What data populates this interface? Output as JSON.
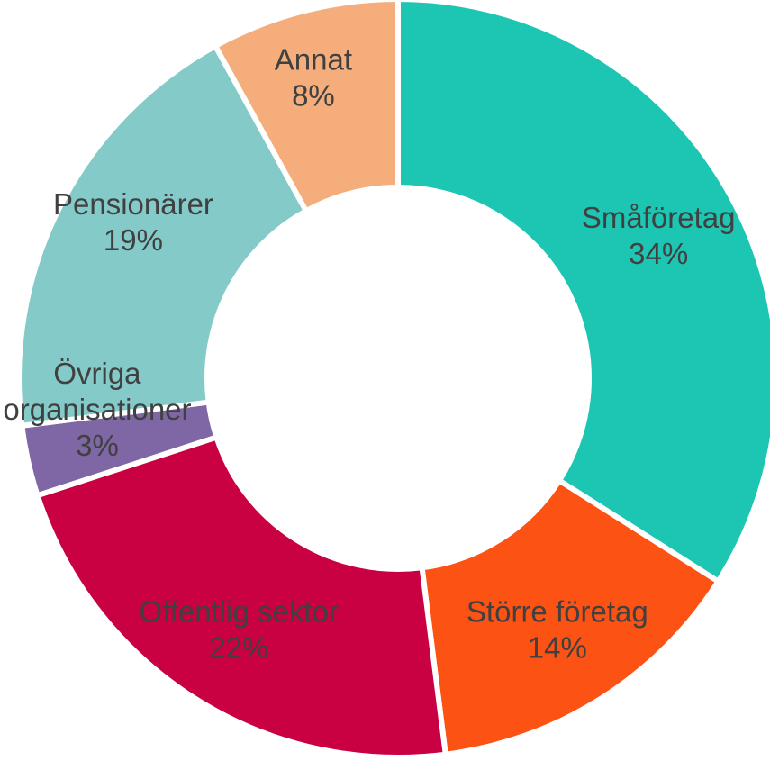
{
  "chart_data": {
    "type": "pie",
    "donut": true,
    "title": "",
    "slices": [
      {
        "label": "Småföretag",
        "value": 34,
        "value_label": "34%",
        "color": "#1dc6b3"
      },
      {
        "label": "Större företag",
        "value": 14,
        "value_label": "14%",
        "color": "#fc5214"
      },
      {
        "label": "Offentlig sektor",
        "value": 22,
        "value_label": "22%",
        "color": "#c90042"
      },
      {
        "label_lines": [
          "Övriga",
          "organisationer"
        ],
        "value": 3,
        "value_label": "3%",
        "color": "#7f66a4"
      },
      {
        "label": "Pensionärer",
        "value": 19,
        "value_label": "19%",
        "color": "#83cac8"
      },
      {
        "label": "Annat",
        "value": 8,
        "value_label": "8%",
        "color": "#f4ad7b"
      }
    ],
    "legend": "none"
  }
}
